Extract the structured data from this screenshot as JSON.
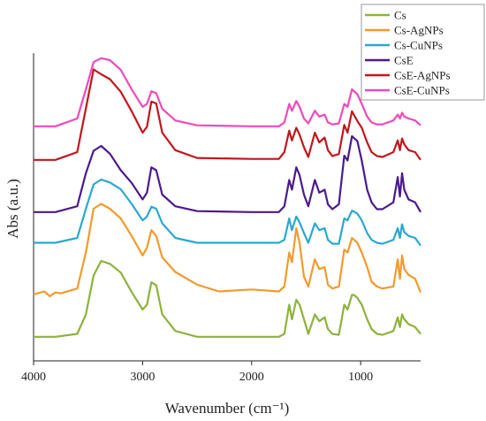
{
  "chart_data": {
    "type": "line",
    "title": "",
    "xlabel": "Wavenumber (cm⁻¹)",
    "ylabel": "Abs (a.u.)",
    "xlim": [
      4000,
      450
    ],
    "x_reversed": true,
    "xticks": [
      4000,
      3000,
      2000,
      1000
    ],
    "yticks_shown": false,
    "grid": false,
    "legend_position": "top-right",
    "series": [
      {
        "name": "Cs",
        "color": "#8DB33A",
        "points": [
          [
            4000,
            0.02
          ],
          [
            3800,
            0.02
          ],
          [
            3600,
            0.05
          ],
          [
            3520,
            0.25
          ],
          [
            3450,
            0.65
          ],
          [
            3380,
            0.8
          ],
          [
            3300,
            0.77
          ],
          [
            3200,
            0.68
          ],
          [
            3100,
            0.48
          ],
          [
            3000,
            0.3
          ],
          [
            2960,
            0.35
          ],
          [
            2920,
            0.58
          ],
          [
            2875,
            0.55
          ],
          [
            2820,
            0.25
          ],
          [
            2700,
            0.08
          ],
          [
            2500,
            0.02
          ],
          [
            2000,
            0.02
          ],
          [
            1750,
            0.02
          ],
          [
            1700,
            0.05
          ],
          [
            1655,
            0.35
          ],
          [
            1630,
            0.2
          ],
          [
            1590,
            0.4
          ],
          [
            1560,
            0.35
          ],
          [
            1520,
            0.2
          ],
          [
            1480,
            0.05
          ],
          [
            1420,
            0.25
          ],
          [
            1380,
            0.18
          ],
          [
            1330,
            0.22
          ],
          [
            1300,
            0.1
          ],
          [
            1260,
            0.05
          ],
          [
            1200,
            0.04
          ],
          [
            1150,
            0.35
          ],
          [
            1120,
            0.3
          ],
          [
            1080,
            0.45
          ],
          [
            1060,
            0.45
          ],
          [
            1030,
            0.42
          ],
          [
            990,
            0.35
          ],
          [
            940,
            0.2
          ],
          [
            900,
            0.1
          ],
          [
            850,
            0.05
          ],
          [
            800,
            0.04
          ],
          [
            700,
            0.08
          ],
          [
            660,
            0.22
          ],
          [
            640,
            0.12
          ],
          [
            620,
            0.25
          ],
          [
            600,
            0.2
          ],
          [
            560,
            0.15
          ],
          [
            500,
            0.12
          ],
          [
            450,
            0.05
          ]
        ]
      },
      {
        "name": "Cs-AgNPs",
        "color": "#F39A2B",
        "points": [
          [
            4000,
            0.02
          ],
          [
            3900,
            0.05
          ],
          [
            3850,
            0.0
          ],
          [
            3800,
            0.04
          ],
          [
            3750,
            0.03
          ],
          [
            3600,
            0.08
          ],
          [
            3520,
            0.45
          ],
          [
            3450,
            0.9
          ],
          [
            3380,
            0.95
          ],
          [
            3300,
            0.9
          ],
          [
            3200,
            0.8
          ],
          [
            3100,
            0.62
          ],
          [
            3000,
            0.42
          ],
          [
            2960,
            0.5
          ],
          [
            2920,
            0.68
          ],
          [
            2875,
            0.62
          ],
          [
            2820,
            0.4
          ],
          [
            2700,
            0.25
          ],
          [
            2500,
            0.12
          ],
          [
            2300,
            0.05
          ],
          [
            2000,
            0.07
          ],
          [
            1750,
            0.05
          ],
          [
            1700,
            0.1
          ],
          [
            1655,
            0.45
          ],
          [
            1630,
            0.35
          ],
          [
            1590,
            0.7
          ],
          [
            1560,
            0.55
          ],
          [
            1520,
            0.2
          ],
          [
            1480,
            0.1
          ],
          [
            1420,
            0.38
          ],
          [
            1380,
            0.28
          ],
          [
            1330,
            0.3
          ],
          [
            1300,
            0.12
          ],
          [
            1260,
            0.08
          ],
          [
            1200,
            0.1
          ],
          [
            1150,
            0.48
          ],
          [
            1120,
            0.45
          ],
          [
            1080,
            0.6
          ],
          [
            1060,
            0.58
          ],
          [
            1030,
            0.55
          ],
          [
            990,
            0.45
          ],
          [
            940,
            0.3
          ],
          [
            900,
            0.15
          ],
          [
            850,
            0.1
          ],
          [
            800,
            0.08
          ],
          [
            700,
            0.1
          ],
          [
            660,
            0.38
          ],
          [
            640,
            0.18
          ],
          [
            620,
            0.42
          ],
          [
            600,
            0.28
          ],
          [
            560,
            0.22
          ],
          [
            500,
            0.18
          ],
          [
            450,
            0.04
          ]
        ]
      },
      {
        "name": "Cs-CuNPs",
        "color": "#2AA8D0",
        "points": [
          [
            4000,
            0.05
          ],
          [
            3800,
            0.05
          ],
          [
            3600,
            0.1
          ],
          [
            3520,
            0.4
          ],
          [
            3450,
            0.65
          ],
          [
            3380,
            0.7
          ],
          [
            3300,
            0.67
          ],
          [
            3200,
            0.6
          ],
          [
            3100,
            0.45
          ],
          [
            3000,
            0.28
          ],
          [
            2960,
            0.32
          ],
          [
            2920,
            0.42
          ],
          [
            2875,
            0.4
          ],
          [
            2820,
            0.25
          ],
          [
            2700,
            0.1
          ],
          [
            2500,
            0.05
          ],
          [
            2000,
            0.05
          ],
          [
            1750,
            0.05
          ],
          [
            1700,
            0.08
          ],
          [
            1655,
            0.3
          ],
          [
            1630,
            0.18
          ],
          [
            1590,
            0.32
          ],
          [
            1560,
            0.26
          ],
          [
            1520,
            0.15
          ],
          [
            1480,
            0.05
          ],
          [
            1420,
            0.25
          ],
          [
            1380,
            0.18
          ],
          [
            1330,
            0.2
          ],
          [
            1300,
            0.08
          ],
          [
            1260,
            0.04
          ],
          [
            1200,
            0.04
          ],
          [
            1150,
            0.3
          ],
          [
            1120,
            0.28
          ],
          [
            1080,
            0.38
          ],
          [
            1060,
            0.37
          ],
          [
            1030,
            0.35
          ],
          [
            990,
            0.28
          ],
          [
            940,
            0.15
          ],
          [
            900,
            0.08
          ],
          [
            850,
            0.05
          ],
          [
            800,
            0.04
          ],
          [
            700,
            0.08
          ],
          [
            660,
            0.2
          ],
          [
            640,
            0.1
          ],
          [
            620,
            0.24
          ],
          [
            600,
            0.16
          ],
          [
            560,
            0.12
          ],
          [
            500,
            0.1
          ],
          [
            450,
            0.02
          ]
        ]
      },
      {
        "name": "CsE",
        "color": "#4A1A8C",
        "points": [
          [
            4000,
            0.02
          ],
          [
            3800,
            0.02
          ],
          [
            3600,
            0.08
          ],
          [
            3520,
            0.42
          ],
          [
            3450,
            0.65
          ],
          [
            3380,
            0.7
          ],
          [
            3300,
            0.62
          ],
          [
            3200,
            0.45
          ],
          [
            3100,
            0.32
          ],
          [
            3000,
            0.15
          ],
          [
            2960,
            0.22
          ],
          [
            2920,
            0.48
          ],
          [
            2875,
            0.45
          ],
          [
            2820,
            0.2
          ],
          [
            2700,
            0.08
          ],
          [
            2500,
            0.03
          ],
          [
            2000,
            0.02
          ],
          [
            1750,
            0.02
          ],
          [
            1700,
            0.08
          ],
          [
            1655,
            0.35
          ],
          [
            1630,
            0.25
          ],
          [
            1590,
            0.48
          ],
          [
            1560,
            0.4
          ],
          [
            1520,
            0.2
          ],
          [
            1480,
            0.08
          ],
          [
            1420,
            0.35
          ],
          [
            1380,
            0.22
          ],
          [
            1330,
            0.25
          ],
          [
            1300,
            0.1
          ],
          [
            1260,
            0.05
          ],
          [
            1200,
            0.1
          ],
          [
            1150,
            0.6
          ],
          [
            1120,
            0.55
          ],
          [
            1080,
            0.8
          ],
          [
            1060,
            0.78
          ],
          [
            1030,
            0.75
          ],
          [
            990,
            0.55
          ],
          [
            940,
            0.25
          ],
          [
            900,
            0.12
          ],
          [
            850,
            0.05
          ],
          [
            800,
            0.05
          ],
          [
            700,
            0.12
          ],
          [
            660,
            0.38
          ],
          [
            640,
            0.18
          ],
          [
            620,
            0.42
          ],
          [
            600,
            0.25
          ],
          [
            560,
            0.15
          ],
          [
            500,
            0.12
          ],
          [
            450,
            0.02
          ]
        ]
      },
      {
        "name": "CsE-AgNPs",
        "color": "#C0171C",
        "points": [
          [
            4000,
            0.02
          ],
          [
            3800,
            0.02
          ],
          [
            3600,
            0.1
          ],
          [
            3520,
            0.55
          ],
          [
            3450,
            0.95
          ],
          [
            3380,
            0.9
          ],
          [
            3300,
            0.85
          ],
          [
            3200,
            0.72
          ],
          [
            3100,
            0.52
          ],
          [
            3000,
            0.3
          ],
          [
            2960,
            0.36
          ],
          [
            2920,
            0.62
          ],
          [
            2875,
            0.6
          ],
          [
            2820,
            0.3
          ],
          [
            2700,
            0.12
          ],
          [
            2500,
            0.04
          ],
          [
            2000,
            0.03
          ],
          [
            1750,
            0.03
          ],
          [
            1700,
            0.1
          ],
          [
            1655,
            0.32
          ],
          [
            1630,
            0.22
          ],
          [
            1590,
            0.35
          ],
          [
            1560,
            0.28
          ],
          [
            1520,
            0.15
          ],
          [
            1480,
            0.05
          ],
          [
            1420,
            0.3
          ],
          [
            1380,
            0.2
          ],
          [
            1330,
            0.25
          ],
          [
            1300,
            0.12
          ],
          [
            1260,
            0.06
          ],
          [
            1200,
            0.08
          ],
          [
            1150,
            0.38
          ],
          [
            1120,
            0.3
          ],
          [
            1080,
            0.52
          ],
          [
            1060,
            0.48
          ],
          [
            1030,
            0.42
          ],
          [
            990,
            0.35
          ],
          [
            940,
            0.2
          ],
          [
            900,
            0.1
          ],
          [
            850,
            0.06
          ],
          [
            800,
            0.05
          ],
          [
            700,
            0.1
          ],
          [
            660,
            0.22
          ],
          [
            640,
            0.12
          ],
          [
            620,
            0.24
          ],
          [
            600,
            0.18
          ],
          [
            560,
            0.12
          ],
          [
            500,
            0.1
          ],
          [
            450,
            0.02
          ]
        ]
      },
      {
        "name": "CsE-CuNPs",
        "color": "#F049B9",
        "points": [
          [
            4000,
            0.02
          ],
          [
            3800,
            0.02
          ],
          [
            3600,
            0.1
          ],
          [
            3520,
            0.4
          ],
          [
            3450,
            0.68
          ],
          [
            3380,
            0.72
          ],
          [
            3300,
            0.7
          ],
          [
            3200,
            0.6
          ],
          [
            3100,
            0.4
          ],
          [
            3000,
            0.22
          ],
          [
            2960,
            0.25
          ],
          [
            2920,
            0.38
          ],
          [
            2875,
            0.36
          ],
          [
            2820,
            0.2
          ],
          [
            2700,
            0.08
          ],
          [
            2500,
            0.03
          ],
          [
            2000,
            0.02
          ],
          [
            1750,
            0.02
          ],
          [
            1700,
            0.06
          ],
          [
            1655,
            0.25
          ],
          [
            1630,
            0.18
          ],
          [
            1590,
            0.28
          ],
          [
            1560,
            0.22
          ],
          [
            1520,
            0.1
          ],
          [
            1480,
            0.05
          ],
          [
            1420,
            0.18
          ],
          [
            1380,
            0.12
          ],
          [
            1330,
            0.14
          ],
          [
            1300,
            0.06
          ],
          [
            1260,
            0.04
          ],
          [
            1200,
            0.05
          ],
          [
            1150,
            0.25
          ],
          [
            1120,
            0.22
          ],
          [
            1080,
            0.4
          ],
          [
            1060,
            0.38
          ],
          [
            1030,
            0.35
          ],
          [
            990,
            0.25
          ],
          [
            940,
            0.12
          ],
          [
            900,
            0.06
          ],
          [
            850,
            0.04
          ],
          [
            800,
            0.04
          ],
          [
            700,
            0.08
          ],
          [
            660,
            0.14
          ],
          [
            640,
            0.1
          ],
          [
            620,
            0.16
          ],
          [
            600,
            0.12
          ],
          [
            560,
            0.1
          ],
          [
            500,
            0.08
          ],
          [
            450,
            0.03
          ]
        ]
      }
    ]
  }
}
